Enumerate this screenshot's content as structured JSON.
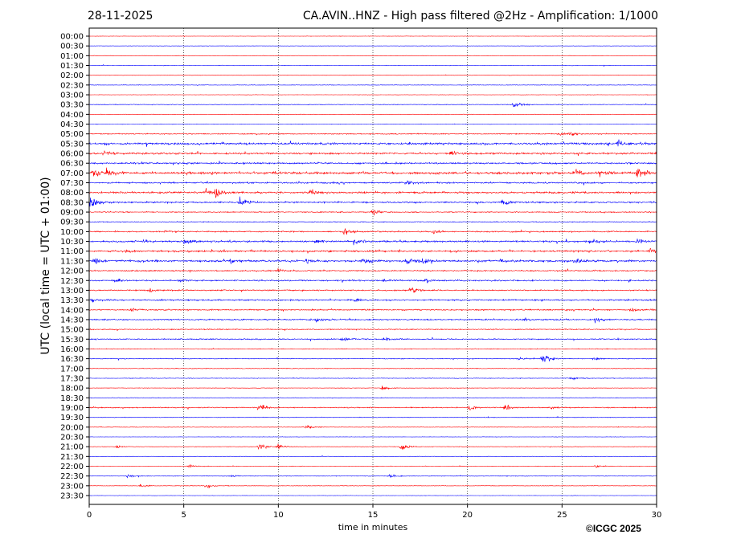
{
  "header": {
    "date": "28-11-2025",
    "title": "CA.AVIN..HNZ - High pass filtered @2Hz - Amplification: 1/1000"
  },
  "footer": {
    "copyright": "©ICGC 2025"
  },
  "chart_data": {
    "type": "line",
    "title": "CA.AVIN..HNZ - High pass filtered @2Hz - Amplification: 1/1000",
    "xlabel": "time in minutes",
    "ylabel": "UTC (local time = UTC + 01:00)",
    "xlim": [
      0,
      30
    ],
    "xticks": [
      "0",
      "5",
      "10",
      "15",
      "20",
      "25",
      "30"
    ],
    "grid": "vertical dotted at every 5 minutes",
    "colors": {
      "even_rows": "#ff0000",
      "odd_rows": "#0000ff"
    },
    "rows": [
      "00:00",
      "00:30",
      "01:00",
      "01:30",
      "02:00",
      "02:30",
      "03:00",
      "03:30",
      "04:00",
      "04:30",
      "05:00",
      "05:30",
      "06:00",
      "06:30",
      "07:00",
      "07:30",
      "08:00",
      "08:30",
      "09:00",
      "09:30",
      "10:00",
      "10:30",
      "11:00",
      "11:30",
      "12:00",
      "12:30",
      "13:00",
      "13:30",
      "14:00",
      "14:30",
      "15:00",
      "15:30",
      "16:00",
      "16:30",
      "17:00",
      "17:30",
      "18:00",
      "18:30",
      "19:00",
      "19:30",
      "20:00",
      "20:30",
      "21:00",
      "21:30",
      "22:00",
      "22:30",
      "23:00",
      "23:30"
    ],
    "noise_level": [
      0.3,
      0.3,
      0.3,
      0.4,
      0.3,
      0.4,
      0.3,
      0.5,
      0.3,
      0.4,
      0.8,
      1.6,
      1.4,
      1.3,
      1.8,
      1.2,
      1.4,
      1.2,
      0.8,
      0.6,
      1.0,
      1.4,
      1.3,
      1.6,
      1.0,
      1.1,
      1.0,
      1.1,
      1.0,
      1.0,
      0.8,
      0.9,
      0.6,
      0.6,
      0.5,
      0.5,
      0.4,
      0.4,
      0.8,
      0.5,
      0.4,
      0.3,
      0.4,
      0.3,
      0.4,
      0.5,
      0.4,
      0.3
    ],
    "events": [
      {
        "row": "03:30",
        "minute": 22.5,
        "amplitude": 6
      },
      {
        "row": "05:00",
        "minute": 25.5,
        "amplitude": 3
      },
      {
        "row": "05:00",
        "minute": 24.8,
        "amplitude": 2
      },
      {
        "row": "05:30",
        "minute": 28.0,
        "amplitude": 4
      },
      {
        "row": "06:00",
        "minute": 19.2,
        "amplitude": 4
      },
      {
        "row": "06:00",
        "minute": 0.8,
        "amplitude": 3
      },
      {
        "row": "07:00",
        "minute": 0.2,
        "amplitude": 7
      },
      {
        "row": "07:00",
        "minute": 0.9,
        "amplitude": 5
      },
      {
        "row": "07:00",
        "minute": 25.7,
        "amplitude": 5
      },
      {
        "row": "07:00",
        "minute": 29.0,
        "amplitude": 9
      },
      {
        "row": "07:00",
        "minute": 27.0,
        "amplitude": 3
      },
      {
        "row": "07:30",
        "minute": 16.8,
        "amplitude": 3
      },
      {
        "row": "08:00",
        "minute": 6.7,
        "amplitude": 8
      },
      {
        "row": "08:00",
        "minute": 6.2,
        "amplitude": 4
      },
      {
        "row": "08:00",
        "minute": 11.7,
        "amplitude": 3
      },
      {
        "row": "08:30",
        "minute": 0.1,
        "amplitude": 9
      },
      {
        "row": "08:30",
        "minute": 8.0,
        "amplitude": 8
      },
      {
        "row": "08:30",
        "minute": 21.9,
        "amplitude": 4
      },
      {
        "row": "09:00",
        "minute": 15.0,
        "amplitude": 4
      },
      {
        "row": "10:00",
        "minute": 13.5,
        "amplitude": 4
      },
      {
        "row": "10:00",
        "minute": 18.2,
        "amplitude": 3
      },
      {
        "row": "10:00",
        "minute": 4.0,
        "amplitude": 2
      },
      {
        "row": "10:30",
        "minute": 5.0,
        "amplitude": 4
      },
      {
        "row": "10:30",
        "minute": 12.0,
        "amplitude": 3
      },
      {
        "row": "10:30",
        "minute": 14.0,
        "amplitude": 5
      },
      {
        "row": "10:30",
        "minute": 26.5,
        "amplitude": 3
      },
      {
        "row": "10:30",
        "minute": 29.0,
        "amplitude": 3
      },
      {
        "row": "11:00",
        "minute": 29.7,
        "amplitude": 5
      },
      {
        "row": "11:00",
        "minute": 2.0,
        "amplitude": 2
      },
      {
        "row": "11:30",
        "minute": 0.3,
        "amplitude": 4
      },
      {
        "row": "11:30",
        "minute": 16.8,
        "amplitude": 5
      },
      {
        "row": "11:30",
        "minute": 17.7,
        "amplitude": 4
      },
      {
        "row": "11:30",
        "minute": 25.7,
        "amplitude": 5
      },
      {
        "row": "11:30",
        "minute": 14.5,
        "amplitude": 3
      },
      {
        "row": "11:30",
        "minute": 7.5,
        "amplitude": 3
      },
      {
        "row": "11:30",
        "minute": 11.5,
        "amplitude": 3
      },
      {
        "row": "11:30",
        "minute": 21.8,
        "amplitude": 3
      },
      {
        "row": "12:00",
        "minute": 10.0,
        "amplitude": 3
      },
      {
        "row": "12:30",
        "minute": 1.3,
        "amplitude": 4
      },
      {
        "row": "12:30",
        "minute": 17.8,
        "amplitude": 3
      },
      {
        "row": "12:30",
        "minute": 15.6,
        "amplitude": 2
      },
      {
        "row": "12:30",
        "minute": 4.8,
        "amplitude": 2
      },
      {
        "row": "13:00",
        "minute": 17.0,
        "amplitude": 4
      },
      {
        "row": "13:00",
        "minute": 3.2,
        "amplitude": 2
      },
      {
        "row": "13:30",
        "minute": 0.2,
        "amplitude": 3
      },
      {
        "row": "13:30",
        "minute": 14.1,
        "amplitude": 3
      },
      {
        "row": "14:00",
        "minute": 2.2,
        "amplitude": 3
      },
      {
        "row": "14:00",
        "minute": 28.7,
        "amplitude": 4
      },
      {
        "row": "14:30",
        "minute": 12.0,
        "amplitude": 4
      },
      {
        "row": "14:30",
        "minute": 26.8,
        "amplitude": 4
      },
      {
        "row": "14:30",
        "minute": 23.0,
        "amplitude": 2
      },
      {
        "row": "15:30",
        "minute": 13.4,
        "amplitude": 3
      },
      {
        "row": "15:30",
        "minute": 15.6,
        "amplitude": 3
      },
      {
        "row": "16:30",
        "minute": 24.0,
        "amplitude": 9
      },
      {
        "row": "16:30",
        "minute": 26.7,
        "amplitude": 3
      },
      {
        "row": "16:30",
        "minute": 22.7,
        "amplitude": 2
      },
      {
        "row": "17:30",
        "minute": 25.5,
        "amplitude": 2
      },
      {
        "row": "18:00",
        "minute": 15.5,
        "amplitude": 3
      },
      {
        "row": "19:00",
        "minute": 9.0,
        "amplitude": 5
      },
      {
        "row": "19:00",
        "minute": 20.1,
        "amplitude": 4
      },
      {
        "row": "19:00",
        "minute": 22.0,
        "amplitude": 4
      },
      {
        "row": "19:00",
        "minute": 24.4,
        "amplitude": 2
      },
      {
        "row": "20:00",
        "minute": 11.4,
        "amplitude": 6
      },
      {
        "row": "21:00",
        "minute": 9.0,
        "amplitude": 6
      },
      {
        "row": "21:00",
        "minute": 10.0,
        "amplitude": 4
      },
      {
        "row": "21:00",
        "minute": 16.5,
        "amplitude": 7
      },
      {
        "row": "21:00",
        "minute": 1.5,
        "amplitude": 2
      },
      {
        "row": "22:00",
        "minute": 5.3,
        "amplitude": 2
      },
      {
        "row": "22:00",
        "minute": 26.8,
        "amplitude": 2
      },
      {
        "row": "22:30",
        "minute": 15.9,
        "amplitude": 3
      },
      {
        "row": "22:30",
        "minute": 2.0,
        "amplitude": 2
      },
      {
        "row": "22:30",
        "minute": 7.5,
        "amplitude": 2
      },
      {
        "row": "23:00",
        "minute": 6.2,
        "amplitude": 3
      },
      {
        "row": "23:00",
        "minute": 2.7,
        "amplitude": 2
      }
    ]
  }
}
